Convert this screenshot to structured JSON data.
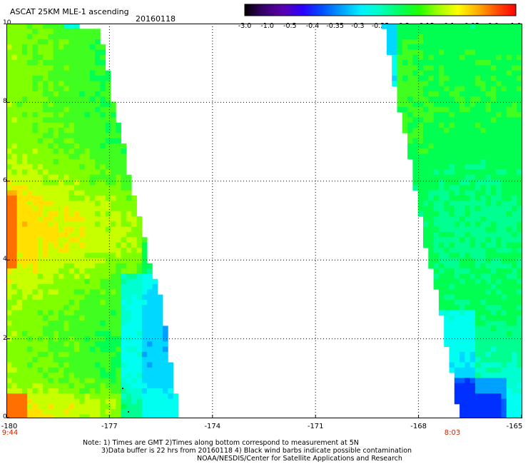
{
  "header": {
    "title": "ASCAT 25KM MLE-1 ascending",
    "date": "20160118"
  },
  "colorbar": {
    "labels": [
      "-3.0",
      "-1.0",
      "-0.5",
      "-0.4",
      "-0.35",
      "-0.3",
      "-0.25",
      "-0.2",
      "-0.15",
      "-0.1",
      "-0.05",
      "0.0",
      "1.0"
    ],
    "colors": [
      "#000000",
      "#3a0070",
      "#5a00b0",
      "#2a00ff",
      "#0050ff",
      "#00a0ff",
      "#00f0ff",
      "#00ffc0",
      "#00ff60",
      "#20ff00",
      "#a0ff00",
      "#ffff00",
      "#ffb000",
      "#ff5000",
      "#ff0000"
    ]
  },
  "map": {
    "lat_labels": [
      "10",
      "8",
      "6",
      "4",
      "2",
      "0"
    ],
    "lon_labels": [
      "-180",
      "-177",
      "-174",
      "-171",
      "-168",
      "-165"
    ],
    "times": {
      "left": "9:44",
      "right": "8:03"
    },
    "lat_range": [
      0,
      10
    ],
    "lon_range": [
      -180,
      -165
    ]
  },
  "notes": {
    "line1": "Note: 1) Times are GMT 2)Times along bottom correspond to measurement at 5N",
    "line2": "3)Data buffer is 22 hrs from 20160118 4) Black wind barbs indicate possible contamination",
    "line3": "NOAA/NESDIS/Center for Satellite Applications and Research"
  }
}
